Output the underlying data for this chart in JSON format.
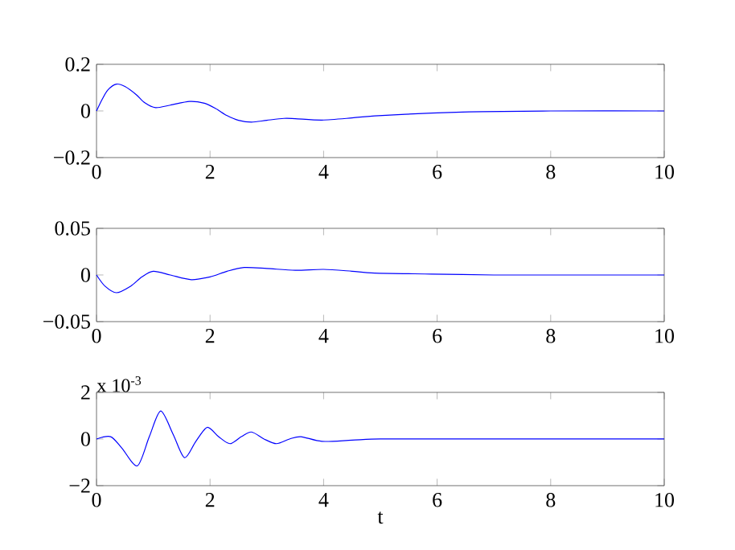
{
  "chart_data": [
    {
      "type": "line",
      "x": [
        0,
        0.1,
        0.2,
        0.35,
        0.5,
        0.7,
        0.85,
        1.04,
        1.3,
        1.64,
        1.9,
        2.1,
        2.3,
        2.5,
        2.73,
        3.0,
        3.3,
        3.5,
        3.97,
        4.5,
        4.9,
        5.9,
        6.8,
        8,
        10
      ],
      "values": [
        0,
        0.05,
        0.09,
        0.115,
        0.105,
        0.07,
        0.035,
        0.014,
        0.025,
        0.041,
        0.033,
        0.01,
        -0.02,
        -0.04,
        -0.048,
        -0.04,
        -0.032,
        -0.033,
        -0.039,
        -0.03,
        -0.021,
        -0.009,
        -0.003,
        0,
        0
      ],
      "color": "#0000ff",
      "xlim": [
        0,
        10
      ],
      "ylim": [
        -0.2,
        0.2
      ],
      "xticks": [
        0,
        2,
        4,
        6,
        8,
        10
      ],
      "yticks": [
        {
          "value": -0.2,
          "label": "−0.2"
        },
        0,
        0.2
      ]
    },
    {
      "type": "line",
      "x": [
        0,
        0.15,
        0.35,
        0.6,
        0.8,
        1.0,
        1.3,
        1.67,
        2.0,
        2.3,
        2.6,
        3.0,
        3.5,
        4.0,
        4.5,
        4.9,
        5.9,
        7,
        8,
        10
      ],
      "values": [
        0,
        -0.012,
        -0.019,
        -0.012,
        -0.002,
        0.004,
        0.0,
        -0.005,
        -0.002,
        0.004,
        0.008,
        0.007,
        0.005,
        0.006,
        0.004,
        0.002,
        0.001,
        0,
        0,
        0
      ],
      "color": "#0000ff",
      "xlim": [
        0,
        10
      ],
      "ylim": [
        -0.05,
        0.05
      ],
      "xticks": [
        0,
        2,
        4,
        6,
        8,
        10
      ],
      "yticks": [
        {
          "value": -0.05,
          "label": "−0.05"
        },
        0,
        0.05
      ]
    },
    {
      "type": "line",
      "x": [
        0,
        0.25,
        0.45,
        0.72,
        0.93,
        1.13,
        1.35,
        1.55,
        1.75,
        1.95,
        2.15,
        2.35,
        2.55,
        2.73,
        2.95,
        3.17,
        3.4,
        3.6,
        3.97,
        4.5,
        5,
        6,
        8,
        10
      ],
      "values": [
        0,
        0.1,
        -0.4,
        -1.15,
        0.1,
        1.2,
        0.2,
        -0.8,
        -0.1,
        0.5,
        0.1,
        -0.2,
        0.1,
        0.3,
        0.0,
        -0.2,
        0.0,
        0.1,
        -0.1,
        -0.05,
        0,
        0,
        0,
        0
      ],
      "color": "#0000ff",
      "xlabel": "t",
      "annotations": [
        "x 10$^{-3}$"
      ],
      "xlim": [
        0,
        10
      ],
      "ylim": [
        -2,
        2
      ],
      "xticks": [
        0,
        2,
        4,
        6,
        8,
        10
      ],
      "yticks": [
        {
          "value": -2,
          "label": "−2"
        },
        0,
        2
      ]
    }
  ]
}
